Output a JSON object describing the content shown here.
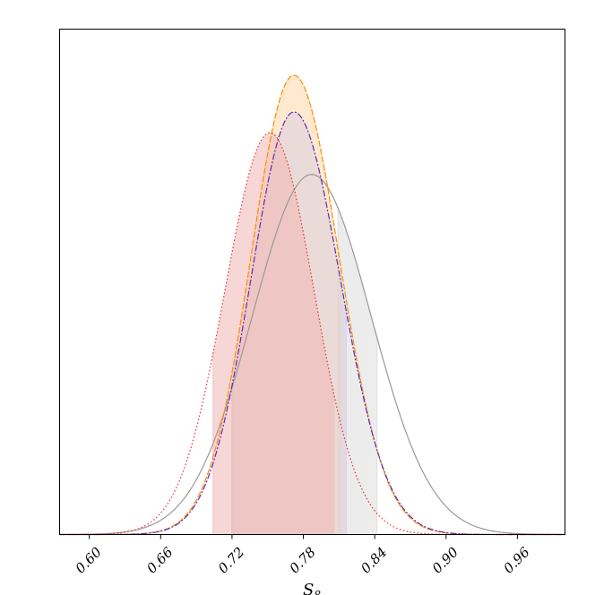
{
  "chart_data": {
    "type": "line",
    "title": "",
    "xlabel": "S_8",
    "ylabel": "",
    "xlim": [
      0.575,
      1.0
    ],
    "ylim": [
      0,
      1.2
    ],
    "grid": false,
    "x_ticks": [
      0.6,
      0.66,
      0.72,
      0.78,
      0.84,
      0.9,
      0.96
    ],
    "x_tick_labels": [
      "0.60",
      "0.66",
      "0.72",
      "0.78",
      "0.84",
      "0.90",
      "0.96"
    ],
    "series": [
      {
        "mean": 0.787,
        "sigma_left": 0.05,
        "sigma_right": 0.05,
        "peak": 0.784,
        "band": [
          0.809,
          0.842
        ],
        "color": "#999999",
        "fill": "#d4d4d4",
        "dash": ""
      },
      {
        "mean": 0.772,
        "sigma_left": 0.036,
        "sigma_right": 0.038,
        "peak": 1.0,
        "band": [
          0.72,
          0.812
        ],
        "color": "#ff8c00",
        "fill": "#ffd9a8",
        "dash": "7,2"
      },
      {
        "mean": 0.772,
        "sigma_left": 0.036,
        "sigma_right": 0.039,
        "peak": 0.92,
        "band": [
          0.72,
          0.816
        ],
        "color": "#5b2bb5",
        "fill": "#d8cde0",
        "dash": "7,2,2,2"
      },
      {
        "mean": 0.752,
        "sigma_left": 0.038,
        "sigma_right": 0.037,
        "peak": 0.875,
        "band": [
          0.704,
          0.806
        ],
        "color": "#e53030",
        "fill": "#f0b4b4",
        "dash": "1.5,2.5"
      }
    ]
  }
}
